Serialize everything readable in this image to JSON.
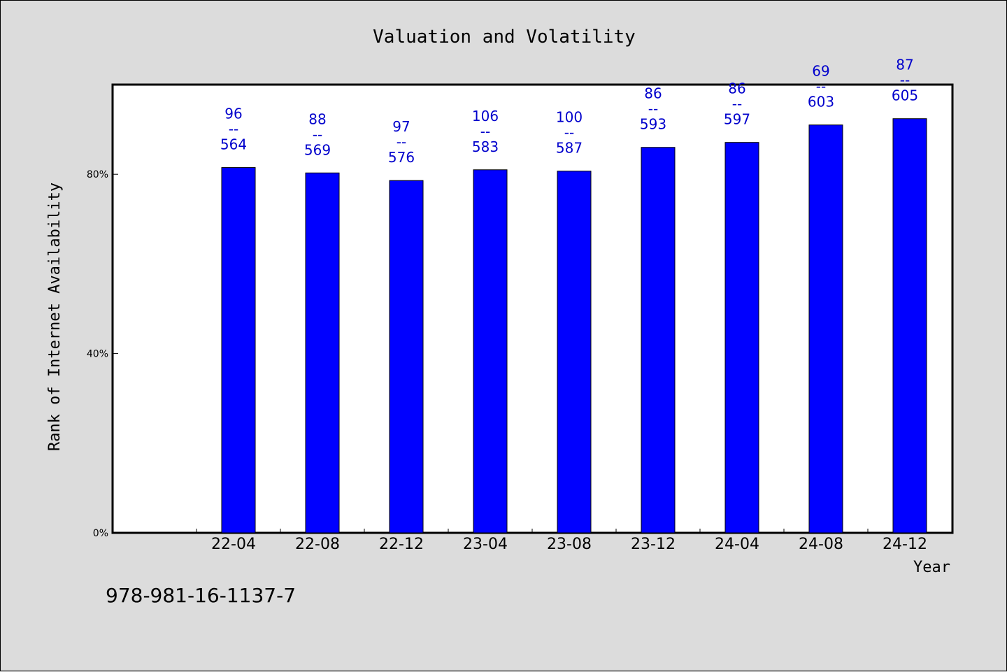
{
  "chart_data": {
    "type": "bar",
    "title": "Valuation and Volatility",
    "xlabel": "Year",
    "ylabel": "Rank of Internet Availability",
    "categories": [
      "22-04",
      "22-08",
      "22-12",
      "23-04",
      "23-08",
      "23-12",
      "24-04",
      "24-08",
      "24-12"
    ],
    "values": [
      81.5,
      80.3,
      78.6,
      81.0,
      80.7,
      86.0,
      87.1,
      91.0,
      92.4
    ],
    "data_labels": [
      [
        "96",
        "--",
        "564"
      ],
      [
        "88",
        "--",
        "569"
      ],
      [
        "97",
        "--",
        "576"
      ],
      [
        "106",
        "--",
        "583"
      ],
      [
        "100",
        "--",
        "587"
      ],
      [
        "86",
        "--",
        "593"
      ],
      [
        "86",
        "--",
        "597"
      ],
      [
        "69",
        "--",
        "603"
      ],
      [
        "87",
        "--",
        "605"
      ]
    ],
    "yticks": [
      "0%",
      "40%",
      "80%"
    ],
    "ytick_values": [
      0,
      40,
      80
    ],
    "ylim": [
      0,
      100
    ],
    "grid": false,
    "colors": {
      "bar": "#0000ff",
      "label": "#0000cc",
      "plot_bg": "#ffffff",
      "page_bg": "#dcdcdc"
    }
  },
  "footnote": "978-981-16-1137-7"
}
